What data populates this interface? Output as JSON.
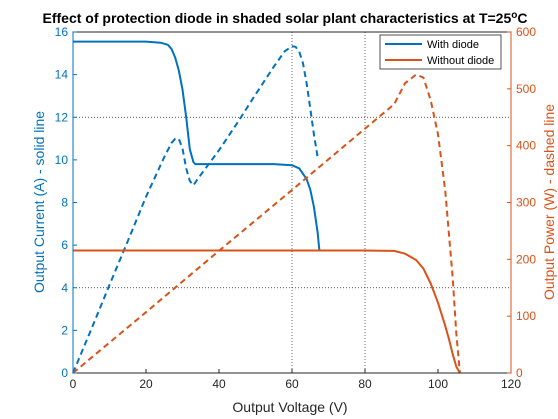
{
  "chart_data": {
    "type": "line",
    "title": "Effect of protection diode in shaded solar plant characteristics at T=25",
    "title_superscript": "o",
    "title_suffix": "C",
    "xlabel": "Output Voltage (V)",
    "ylabel_left": "Output Current (A) - solid line",
    "ylabel_right": "Output Power (W) - dashed line",
    "xlim": [
      0,
      120
    ],
    "ylim_left": [
      0,
      16
    ],
    "ylim_right": [
      0,
      600
    ],
    "x_ticks": [
      "0",
      "20",
      "40",
      "60",
      "80",
      "100",
      "120"
    ],
    "y_left_ticks": [
      "0",
      "2",
      "4",
      "6",
      "8",
      "10",
      "12",
      "14",
      "16"
    ],
    "y_right_ticks": [
      "0",
      "100",
      "200",
      "300",
      "400",
      "500",
      "600"
    ],
    "grid": "dotted, at x = 60 and 80 and y = 4 and 12",
    "legend_position": "top-right",
    "colors": {
      "with_diode": "#0072BD",
      "without_diode": "#D95319",
      "left_axis": "#0072BD",
      "right_axis": "#D95319"
    },
    "series": [
      {
        "name": "With diode",
        "axis": "left",
        "style": "solid",
        "x": [
          0,
          10,
          20,
          24,
          26,
          27,
          28,
          29,
          30,
          31,
          32,
          33,
          33.5,
          36,
          45,
          55,
          60,
          62,
          64,
          65,
          66,
          67,
          67.5
        ],
        "values": [
          15.55,
          15.55,
          15.55,
          15.5,
          15.4,
          15.2,
          14.8,
          14.2,
          13.3,
          12.0,
          10.5,
          9.9,
          9.8,
          9.8,
          9.8,
          9.8,
          9.75,
          9.6,
          9.1,
          8.6,
          7.8,
          6.6,
          5.75
        ]
      },
      {
        "name": "",
        "axis": "right",
        "style": "dashed",
        "x": [
          0,
          5,
          10,
          15,
          20,
          25,
          27,
          28,
          29,
          30,
          31,
          32,
          33,
          34,
          40,
          45,
          50,
          55,
          58,
          60,
          61,
          62,
          63,
          64,
          65,
          66,
          67,
          67.5
        ],
        "values": [
          0,
          77,
          155,
          232,
          310,
          380,
          405,
          412,
          412,
          395,
          360,
          338,
          330,
          340,
          392,
          440,
          490,
          539,
          566,
          575,
          574,
          565,
          545,
          510,
          465,
          420,
          380,
          385
        ]
      },
      {
        "name": "Without diode",
        "axis": "left",
        "style": "solid",
        "x": [
          0,
          20,
          40,
          60,
          80,
          88,
          91,
          94,
          96,
          98,
          100,
          102,
          103,
          104,
          105,
          106
        ],
        "values": [
          5.75,
          5.75,
          5.75,
          5.75,
          5.75,
          5.73,
          5.6,
          5.3,
          4.9,
          4.2,
          3.3,
          2.2,
          1.6,
          0.9,
          0.3,
          0
        ]
      },
      {
        "name": "",
        "axis": "right",
        "style": "dashed",
        "x": [
          0,
          20,
          40,
          60,
          80,
          88,
          91,
          93,
          94,
          96,
          98,
          100,
          102,
          103,
          104,
          105,
          106
        ],
        "values": [
          0,
          107,
          215,
          322,
          430,
          473,
          510,
          520,
          525,
          520,
          480,
          420,
          320,
          245,
          170,
          70,
          0
        ]
      }
    ]
  }
}
